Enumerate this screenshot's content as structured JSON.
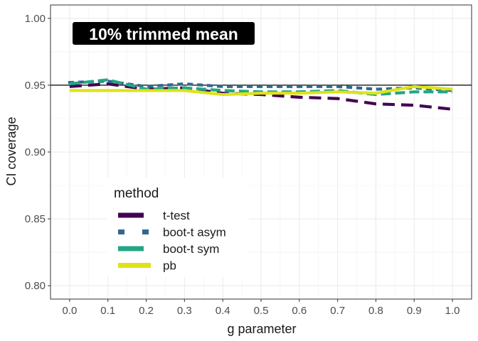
{
  "chart_data": {
    "type": "line",
    "xlabel": "g parameter",
    "ylabel": "CI coverage",
    "xlim": [
      -0.05,
      1.05
    ],
    "ylim": [
      0.79,
      1.01
    ],
    "xticks": [
      0.0,
      0.1,
      0.2,
      0.3,
      0.4,
      0.5,
      0.6,
      0.7,
      0.8,
      0.9,
      1.0
    ],
    "xtick_labels": [
      "0.0",
      "0.1",
      "0.2",
      "0.3",
      "0.4",
      "0.5",
      "0.6",
      "0.7",
      "0.8",
      "0.9",
      "1.0"
    ],
    "yticks": [
      0.8,
      0.85,
      0.9,
      0.95,
      1.0
    ],
    "ytick_labels": [
      "0.80",
      "0.85",
      "0.90",
      "0.95",
      "1.00"
    ],
    "reference_line": 0.95,
    "annotation": "10% trimmed mean",
    "legend_title": "method",
    "legend_position": "left-middle",
    "grid": true,
    "x": [
      0.0,
      0.1,
      0.2,
      0.3,
      0.4,
      0.5,
      0.6,
      0.7,
      0.8,
      0.9,
      1.0
    ],
    "series": [
      {
        "name": "t-test",
        "color": "#440154",
        "dash": "long-dash",
        "values": [
          0.949,
          0.951,
          0.947,
          0.948,
          0.944,
          0.943,
          0.941,
          0.94,
          0.936,
          0.935,
          0.932
        ]
      },
      {
        "name": "boot-t asym",
        "color": "#31688e",
        "dash": "dotted",
        "values": [
          0.952,
          0.953,
          0.949,
          0.951,
          0.949,
          0.949,
          0.949,
          0.949,
          0.947,
          0.948,
          0.946
        ]
      },
      {
        "name": "boot-t sym",
        "color": "#21a784",
        "dash": "dashed",
        "values": [
          0.951,
          0.954,
          0.947,
          0.948,
          0.946,
          0.945,
          0.945,
          0.946,
          0.943,
          0.945,
          0.945
        ]
      },
      {
        "name": "pb",
        "color": "#dde318",
        "dash": "solid",
        "values": [
          0.946,
          0.946,
          0.946,
          0.946,
          0.943,
          0.944,
          0.944,
          0.945,
          0.944,
          0.949,
          0.947
        ]
      }
    ]
  }
}
